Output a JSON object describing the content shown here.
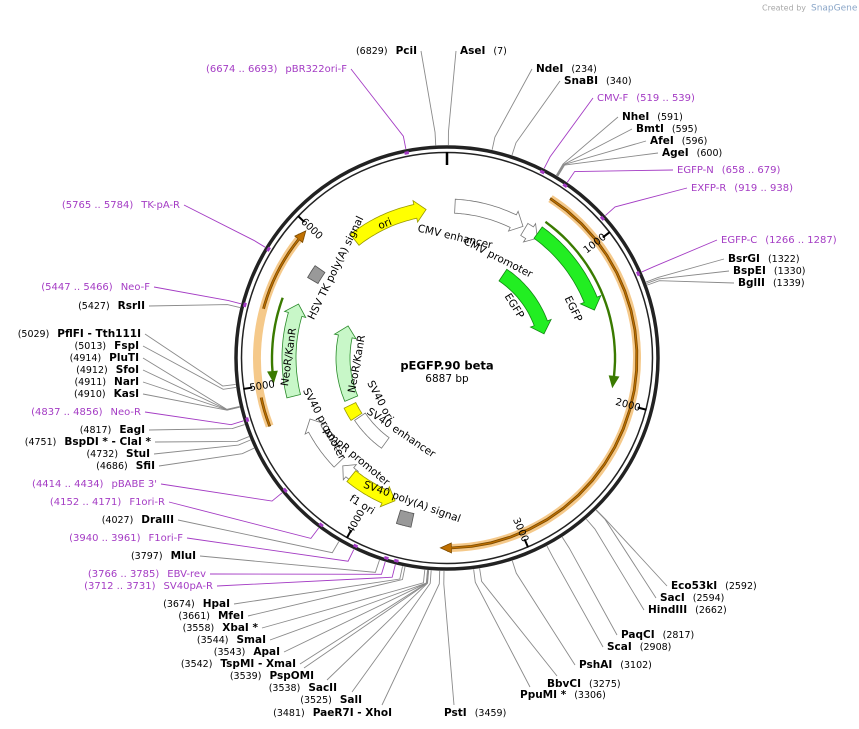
{
  "header": {
    "created_by": "Created by",
    "brand": "SnapGene"
  },
  "map": {
    "name": "pEGFP.90 beta",
    "length": {
      "value": 6887,
      "label": "6887 bp"
    },
    "ticks": [
      1000,
      2000,
      3000,
      4000,
      5000,
      6000
    ]
  },
  "sites": [
    {
      "name": "PciI",
      "position": "(6829)"
    },
    {
      "name": "AseI",
      "position": "(7)"
    },
    {
      "name": "NdeI",
      "position": "(234)"
    },
    {
      "name": "SnaBI",
      "position": "(340)"
    },
    {
      "name": "NheI",
      "position": "(591)"
    },
    {
      "name": "BmtI",
      "position": "(595)"
    },
    {
      "name": "AfeI",
      "position": "(596)"
    },
    {
      "name": "AgeI",
      "position": "(600)"
    },
    {
      "name": "BsrGI",
      "position": "(1322)"
    },
    {
      "name": "BspEI",
      "position": "(1330)"
    },
    {
      "name": "BglII",
      "position": "(1339)"
    },
    {
      "name": "Eco53kI",
      "position": "(2592)"
    },
    {
      "name": "SacI",
      "position": "(2594)"
    },
    {
      "name": "HindIII",
      "position": "(2662)"
    },
    {
      "name": "PaqCI",
      "position": "(2817)"
    },
    {
      "name": "ScaI",
      "position": "(2908)"
    },
    {
      "name": "PshAI",
      "position": "(3102)"
    },
    {
      "name": "BbvCI",
      "position": "(3275)"
    },
    {
      "name": "PpuMI *",
      "position": "(3306)"
    },
    {
      "name": "PstI",
      "position": "(3459)"
    },
    {
      "name": "PaeR7I  -  XhoI",
      "position": "(3481)"
    },
    {
      "name": "SalI",
      "position": "(3525)"
    },
    {
      "name": "SacII",
      "position": "(3538)"
    },
    {
      "name": "PspOMI",
      "position": "(3539)"
    },
    {
      "name": "TspMI  -  XmaI",
      "position": "(3542)"
    },
    {
      "name": "ApaI",
      "position": "(3543)"
    },
    {
      "name": "SmaI",
      "position": "(3544)"
    },
    {
      "name": "XbaI *",
      "position": "(3558)"
    },
    {
      "name": "MfeI",
      "position": "(3661)"
    },
    {
      "name": "HpaI",
      "position": "(3674)"
    },
    {
      "name": "MluI",
      "position": "(3797)"
    },
    {
      "name": "DraIII",
      "position": "(4027)"
    },
    {
      "name": "SfiI",
      "position": "(4686)"
    },
    {
      "name": "StuI",
      "position": "(4732)"
    },
    {
      "name": "BspDI *  -  ClaI *",
      "position": "(4751)"
    },
    {
      "name": "EagI",
      "position": "(4817)"
    },
    {
      "name": "KasI",
      "position": "(4910)"
    },
    {
      "name": "NarI",
      "position": "(4911)"
    },
    {
      "name": "SfoI",
      "position": "(4912)"
    },
    {
      "name": "PluTI",
      "position": "(4914)"
    },
    {
      "name": "FspI",
      "position": "(5013)"
    },
    {
      "name": "PflFI  -  Tth111I",
      "position": "(5029)"
    },
    {
      "name": "RsrII",
      "position": "(5427)"
    }
  ],
  "primers": [
    {
      "name": "pBR322ori-F",
      "range": "(6674 .. 6693)"
    },
    {
      "name": "CMV-F",
      "range": "(519 .. 539)"
    },
    {
      "name": "EGFP-N",
      "range": "(658 .. 679)"
    },
    {
      "name": "EXFP-R",
      "range": "(919 .. 938)"
    },
    {
      "name": "EGFP-C",
      "range": "(1266 .. 1287)"
    },
    {
      "name": "TK-pA-R",
      "range": "(5765 .. 5784)"
    },
    {
      "name": "Neo-F",
      "range": "(5447 .. 5466)"
    },
    {
      "name": "Neo-R",
      "range": "(4837 .. 4856)"
    },
    {
      "name": "pBABE 3'",
      "range": "(4414 .. 4434)"
    },
    {
      "name": "F1ori-R",
      "range": "(4152 .. 4171)"
    },
    {
      "name": "F1ori-F",
      "range": "(3940 .. 3961)"
    },
    {
      "name": "EBV-rev",
      "range": "(3766 .. 3785)"
    },
    {
      "name": "SV40pA-R",
      "range": "(3712 .. 3731)"
    }
  ],
  "features": [
    {
      "label": "ori"
    },
    {
      "label": "CMV enhancer"
    },
    {
      "label": "CMV promoter"
    },
    {
      "label": "EGFP"
    },
    {
      "label": "EGFP"
    },
    {
      "label": "HSV TK poly(A) signal"
    },
    {
      "label": "NeoR/KanR"
    },
    {
      "label": "NeoR/KanR"
    },
    {
      "label": "SV40 ori"
    },
    {
      "label": "SV40 enhancer"
    },
    {
      "label": "SV40 promoter"
    },
    {
      "label": "AmpR promoter"
    },
    {
      "label": "SV40 poly(A) signal"
    },
    {
      "label": "f1 ori"
    }
  ]
}
